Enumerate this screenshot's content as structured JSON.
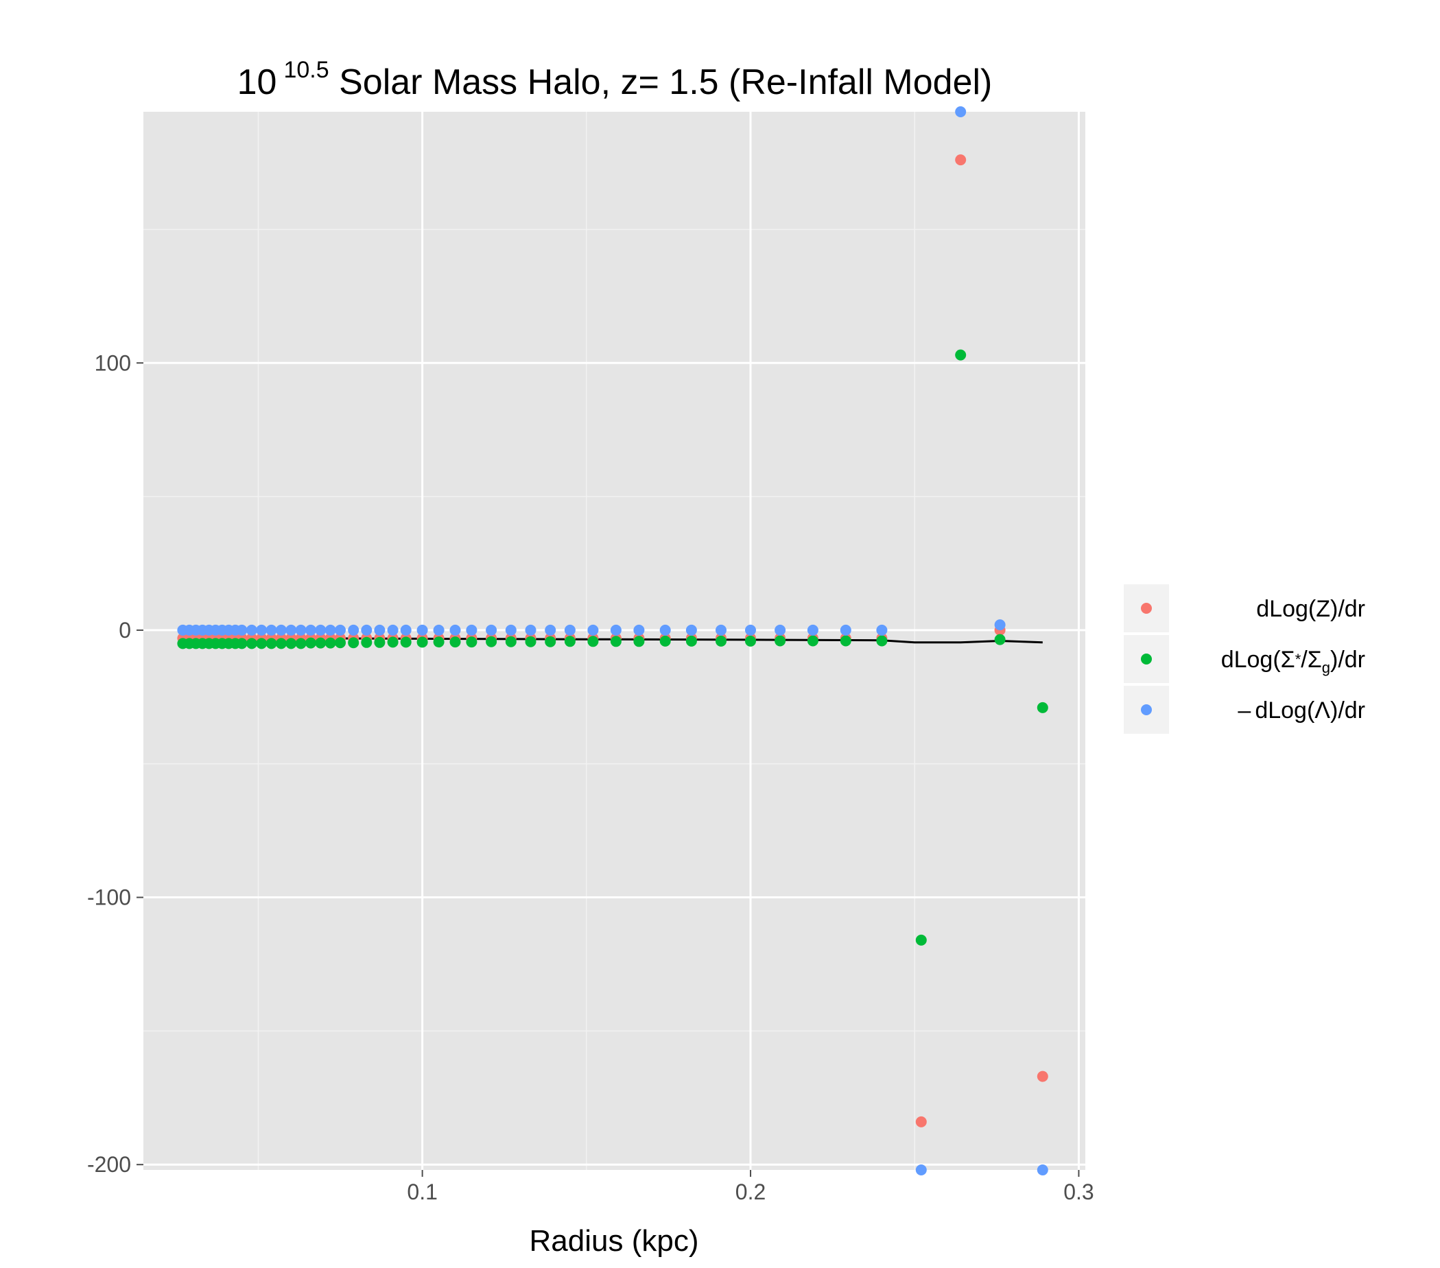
{
  "chart_data": {
    "type": "scatter",
    "title": {
      "prefix": "10",
      "superscript": "10.5",
      "suffix": " Solar Mass Halo, z= 1.5 (Re-Infall Model)"
    },
    "xlabel": "Radius (kpc)",
    "ylabel": "",
    "xlim": [
      0.015,
      0.302
    ],
    "ylim": [
      -202,
      194
    ],
    "xticks": [
      {
        "value": 0.1,
        "label": "0.1"
      },
      {
        "value": 0.2,
        "label": "0.2"
      },
      {
        "value": 0.3,
        "label": "0.3"
      }
    ],
    "xminor": [
      0.05,
      0.15,
      0.25
    ],
    "yticks": [
      {
        "value": 100,
        "label": "100"
      },
      {
        "value": 0,
        "label": "0"
      },
      {
        "value": -100,
        "label": "-100"
      },
      {
        "value": -200,
        "label": "-200"
      }
    ],
    "yminor": [
      150,
      50,
      -50,
      -150
    ],
    "grid": true,
    "legend_position": "right",
    "x": [
      0.027,
      0.029,
      0.031,
      0.033,
      0.035,
      0.037,
      0.039,
      0.041,
      0.043,
      0.045,
      0.048,
      0.051,
      0.054,
      0.057,
      0.06,
      0.063,
      0.066,
      0.069,
      0.072,
      0.075,
      0.079,
      0.083,
      0.087,
      0.091,
      0.095,
      0.1,
      0.105,
      0.11,
      0.115,
      0.121,
      0.127,
      0.133,
      0.139,
      0.145,
      0.152,
      0.159,
      0.166,
      0.174,
      0.182,
      0.191,
      0.2,
      0.209,
      0.219,
      0.229,
      0.24,
      0.252,
      0.264,
      0.276,
      0.289
    ],
    "series": [
      {
        "name": "dLog(Z)/dr",
        "color": "#F8766D",
        "values": [
          -3,
          -3,
          -3,
          -3,
          -3,
          -3,
          -3,
          -3,
          -3,
          -3,
          -3,
          -3,
          -3,
          -3,
          -3,
          -3,
          -3,
          -3,
          -3,
          -3,
          -3,
          -3,
          -3,
          -3,
          -3,
          -3,
          -3,
          -3,
          -3,
          -3,
          -3,
          -3,
          -3,
          -3,
          -3,
          -3,
          -3,
          -3,
          -3,
          -3,
          -3,
          -3,
          -3,
          -3,
          -3,
          -184,
          176,
          0,
          -167
        ]
      },
      {
        "name": "dLog(Σ*/Σg)/dr",
        "color": "#00BA38",
        "values": [
          -5,
          -5,
          -5,
          -5,
          -5,
          -5,
          -5,
          -5,
          -5,
          -5,
          -5,
          -5,
          -5,
          -5,
          -5,
          -5,
          -4.8,
          -4.8,
          -4.8,
          -4.7,
          -4.7,
          -4.6,
          -4.6,
          -4.5,
          -4.5,
          -4.5,
          -4.4,
          -4.4,
          -4.4,
          -4.3,
          -4.3,
          -4.3,
          -4.3,
          -4.2,
          -4.2,
          -4.2,
          -4.2,
          -4.1,
          -4.1,
          -4.1,
          -4.1,
          -4.0,
          -4.0,
          -4.0,
          -4.0,
          -116,
          103,
          -3.5,
          -29
        ]
      },
      {
        "name": "-dLog(Λ)/dr",
        "color": "#619CFF",
        "values": [
          0,
          0,
          0,
          0,
          0,
          0,
          0,
          0,
          0,
          0,
          0,
          0,
          0,
          0,
          0,
          0,
          0,
          0,
          0,
          0,
          0,
          0,
          0,
          0,
          0,
          0,
          0,
          0,
          0,
          0,
          0,
          0,
          0,
          0,
          0,
          0,
          0,
          0,
          0,
          0,
          0,
          0,
          0,
          0,
          0,
          -202,
          194,
          2,
          -202
        ]
      }
    ],
    "line": {
      "color": "#000000",
      "x": [
        0.027,
        0.05,
        0.1,
        0.15,
        0.2,
        0.24,
        0.25,
        0.264,
        0.276,
        0.289
      ],
      "values": [
        -3,
        -3,
        -3.2,
        -3.4,
        -3.6,
        -3.8,
        -4.6,
        -4.6,
        -4.0,
        -4.6
      ]
    },
    "legend": [
      {
        "label": "dLog(Z)/dr",
        "color": "#F8766D",
        "parts": {
          "pre": "dLog(",
          "mid": "Z",
          "post": ")/dr"
        }
      },
      {
        "label": "dLog(Σ*/Σg)/dr",
        "color": "#00BA38",
        "parts": {
          "pre": "dLog(",
          "mid1": "Σ",
          "sup1": "*",
          "slash": "/",
          "mid2": "Σ",
          "sub2": "g",
          "post": ")/dr"
        }
      },
      {
        "label": "-dLog(Λ)/dr",
        "color": "#619CFF",
        "parts": {
          "sign": "–",
          "pre": "dLog(",
          "mid": "Λ",
          "post": ")/dr"
        }
      }
    ]
  }
}
